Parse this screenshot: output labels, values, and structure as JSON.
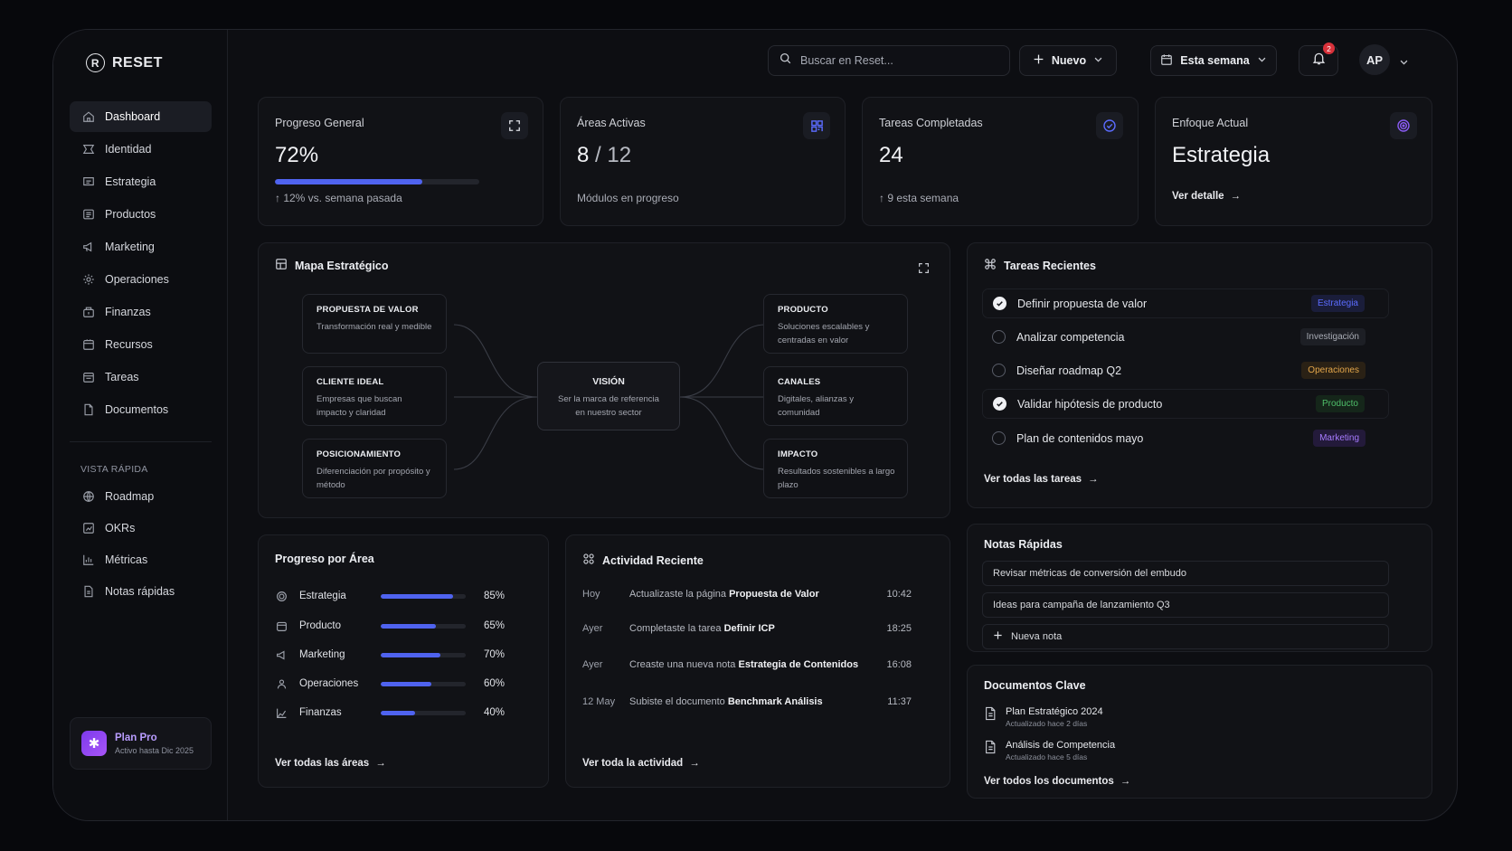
{
  "app": {
    "name": "RESET",
    "logo_letter": "R"
  },
  "sidebar": {
    "items": [
      {
        "label": "Dashboard",
        "icon": "home-icon"
      },
      {
        "label": "Identidad",
        "icon": "identity-icon"
      },
      {
        "label": "Estrategia",
        "icon": "strategy-icon"
      },
      {
        "label": "Productos",
        "icon": "products-icon"
      },
      {
        "label": "Marketing",
        "icon": "megaphone-icon"
      },
      {
        "label": "Operaciones",
        "icon": "gear-icon"
      },
      {
        "label": "Finanzas",
        "icon": "finance-icon"
      },
      {
        "label": "Recursos",
        "icon": "resources-icon"
      },
      {
        "label": "Tareas",
        "icon": "tasks-icon"
      },
      {
        "label": "Documentos",
        "icon": "document-icon"
      }
    ],
    "quick_label": "VISTA RÁPIDA",
    "quick_items": [
      {
        "label": "Roadmap",
        "icon": "globe-icon"
      },
      {
        "label": "OKRs",
        "icon": "target-chart-icon"
      },
      {
        "label": "Métricas",
        "icon": "bar-chart-icon"
      },
      {
        "label": "Notas rápidas",
        "icon": "note-icon"
      }
    ],
    "plan": {
      "title": "Plan Pro",
      "subtitle": "Activo hasta Dic 2025"
    }
  },
  "topbar": {
    "search_placeholder": "Buscar en Reset...",
    "new_label": "Nuevo",
    "period_label": "Esta semana",
    "notifications_count": "2",
    "avatar_initials": "AP"
  },
  "stats": [
    {
      "title": "Progreso General",
      "value": "72%",
      "progress": 0.72,
      "sub": "↑ 12% vs. semana pasada",
      "icon": "expand-icon"
    },
    {
      "title": "Áreas Activas",
      "value": "8",
      "value_total": "/ 12",
      "sub": "Módulos en progreso",
      "icon": "grid-icon"
    },
    {
      "title": "Tareas Completadas",
      "value": "24",
      "sub": "↑ 9 esta semana",
      "icon": "check-circle-icon"
    },
    {
      "title": "Enfoque Actual",
      "value": "Estrategia",
      "link": "Ver detalle",
      "icon": "target-icon"
    }
  ],
  "strategic_map": {
    "title": "Mapa Estratégico",
    "center": {
      "title": "VISIÓN",
      "desc": "Ser la marca de referencia en nuestro sector"
    },
    "left": [
      {
        "title": "PROPUESTA DE VALOR",
        "desc": "Transformación real y medible"
      },
      {
        "title": "CLIENTE IDEAL",
        "desc": "Empresas que buscan impacto y claridad"
      },
      {
        "title": "POSICIONAMIENTO",
        "desc": "Diferenciación por propósito y método"
      }
    ],
    "right": [
      {
        "title": "PRODUCTO",
        "desc": "Soluciones escalables y centradas en valor"
      },
      {
        "title": "CANALES",
        "desc": "Digitales, alianzas y comunidad"
      },
      {
        "title": "IMPACTO",
        "desc": "Resultados sostenibles a largo plazo"
      }
    ]
  },
  "recent_tasks": {
    "title": "Tareas Recientes",
    "items": [
      {
        "label": "Definir propuesta de valor",
        "done": true,
        "tag": "Estrategia",
        "tag_color": "#5b6cff",
        "tag_bg": "#1a1d3a"
      },
      {
        "label": "Analizar competencia",
        "done": false,
        "tag": "Investigación",
        "tag_color": "#a9acb5",
        "tag_bg": "#1d1f25"
      },
      {
        "label": "Diseñar roadmap Q2",
        "done": false,
        "tag": "Operaciones",
        "tag_color": "#e3a64a",
        "tag_bg": "#2a2115"
      },
      {
        "label": "Validar hipótesis de producto",
        "done": true,
        "tag": "Producto",
        "tag_color": "#4fbf6a",
        "tag_bg": "#15261a"
      },
      {
        "label": "Plan de contenidos mayo",
        "done": false,
        "tag": "Marketing",
        "tag_color": "#a77bff",
        "tag_bg": "#231a3a"
      }
    ],
    "link": "Ver todas las tareas"
  },
  "area_progress": {
    "title": "Progreso por Área",
    "items": [
      {
        "label": "Estrategia",
        "value": 0.85,
        "pct": "85%",
        "icon": "target-icon"
      },
      {
        "label": "Producto",
        "value": 0.65,
        "pct": "65%",
        "icon": "box-icon"
      },
      {
        "label": "Marketing",
        "value": 0.7,
        "pct": "70%",
        "icon": "megaphone-icon"
      },
      {
        "label": "Operaciones",
        "value": 0.6,
        "pct": "60%",
        "icon": "people-icon"
      },
      {
        "label": "Finanzas",
        "value": 0.4,
        "pct": "40%",
        "icon": "finance-icon"
      }
    ],
    "link": "Ver todas las áreas"
  },
  "activity": {
    "title": "Actividad Reciente",
    "items": [
      {
        "day": "Hoy",
        "text": "Actualizaste la página",
        "target": "Propuesta de Valor",
        "time": "10:42"
      },
      {
        "day": "Ayer",
        "text": "Completaste la tarea",
        "target": "Definir ICP",
        "time": "18:25"
      },
      {
        "day": "Ayer",
        "text": "Creaste una nueva nota",
        "target": "Estrategia de Contenidos",
        "time": "16:08"
      },
      {
        "day": "12 May",
        "text": "Subiste el documento",
        "target": "Benchmark Análisis",
        "time": "11:37"
      }
    ],
    "link": "Ver toda la actividad"
  },
  "notes": {
    "title": "Notas Rápidas",
    "items": [
      "Revisar métricas de conversión del embudo",
      "Ideas para campaña de lanzamiento Q3"
    ],
    "new_label": "Nueva nota"
  },
  "documents": {
    "title": "Documentos Clave",
    "items": [
      {
        "name": "Plan Estratégico 2024",
        "updated": "Actualizado hace 2 días"
      },
      {
        "name": "Análisis de Competencia",
        "updated": "Actualizado hace 5 días"
      }
    ],
    "link": "Ver todos los documentos"
  },
  "colors": {
    "accent": "#4f63ef",
    "plan": "#7c3aed",
    "badge": "#d8313a"
  }
}
